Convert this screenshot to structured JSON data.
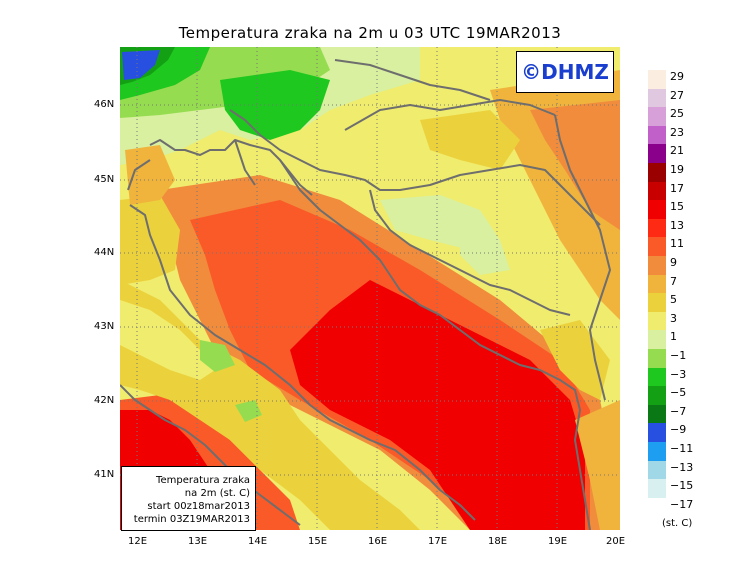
{
  "title": "Temperatura zraka na 2m u 03 UTC 19MAR2013",
  "brand": "©DHMZ",
  "infobox": {
    "line1": "Temperatura zraka",
    "line2": "na 2m (st. C)",
    "line3": "start 00z18mar2013",
    "line4": "termin 03Z19MAR2013"
  },
  "lat_labels": [
    "46N",
    "45N",
    "44N",
    "43N",
    "42N",
    "41N"
  ],
  "lon_labels": [
    "12E",
    "13E",
    "14E",
    "15E",
    "16E",
    "17E",
    "18E",
    "19E",
    "20E"
  ],
  "legend": {
    "unit": "(st. C)",
    "labels": [
      "29",
      "27",
      "25",
      "23",
      "21",
      "19",
      "17",
      "15",
      "13",
      "11",
      "9",
      "7",
      "5",
      "3",
      "1",
      "−1",
      "−3",
      "−5",
      "−7",
      "−9",
      "−11",
      "−13",
      "−15",
      "−17"
    ],
    "colors": [
      "#fbeee0",
      "#e0c8e0",
      "#d8a0d8",
      "#c060c8",
      "#8a008a",
      "#9a0000",
      "#c80000",
      "#f00000",
      "#ff2a14",
      "#fa5a28",
      "#f08c3c",
      "#f0b43c",
      "#ebd23c",
      "#f0ec6e",
      "#d8f0a0",
      "#96dc50",
      "#1ec81e",
      "#14a014",
      "#0a7814",
      "#2850e0",
      "#1e9ef0",
      "#a0d8e8",
      "#d8f0f0",
      "#ffffff"
    ]
  },
  "colors": {
    "coastline": "#6e6e6e",
    "grid": "#777777",
    "brand_text": "#1a3fcf"
  }
}
